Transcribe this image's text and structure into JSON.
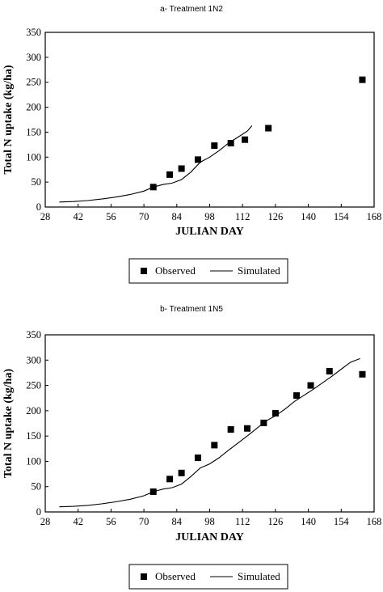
{
  "chart_data": [
    {
      "type": "scatter",
      "title": "a- Treatment 1N2",
      "xlabel": "JULIAN DAY",
      "ylabel": "Total N uptake (kg/ha)",
      "xlim": [
        28,
        168
      ],
      "ylim": [
        0,
        350
      ],
      "xticks": [
        28,
        42,
        56,
        70,
        84,
        98,
        112,
        126,
        140,
        154,
        168
      ],
      "yticks": [
        0,
        50,
        100,
        150,
        200,
        250,
        300,
        350
      ],
      "legend": {
        "position": "bottom",
        "entries": [
          "Observed",
          "Simulated"
        ]
      },
      "series": [
        {
          "name": "Observed",
          "kind": "points",
          "x": [
            74,
            81,
            86,
            93,
            100,
            107,
            113,
            123,
            163
          ],
          "y": [
            40,
            65,
            77,
            95,
            123,
            128,
            135,
            158,
            255
          ]
        },
        {
          "name": "Simulated",
          "kind": "line",
          "x": [
            34,
            40,
            46,
            52,
            58,
            64,
            70,
            74,
            78,
            82,
            86,
            90,
            94,
            98,
            102,
            106,
            110,
            114,
            116
          ],
          "y": [
            10,
            11,
            13,
            16,
            20,
            25,
            32,
            40,
            45,
            48,
            55,
            70,
            90,
            100,
            113,
            128,
            140,
            152,
            163
          ]
        }
      ]
    },
    {
      "type": "scatter",
      "title": "b- Treatment 1N5",
      "xlabel": "JULIAN DAY",
      "ylabel": "Total N uptake (kg/ha)",
      "xlim": [
        28,
        168
      ],
      "ylim": [
        0,
        350
      ],
      "xticks": [
        28,
        42,
        56,
        70,
        84,
        98,
        112,
        126,
        140,
        154,
        168
      ],
      "yticks": [
        0,
        50,
        100,
        150,
        200,
        250,
        300,
        350
      ],
      "legend": {
        "position": "bottom",
        "entries": [
          "Observed",
          "Simulated"
        ]
      },
      "series": [
        {
          "name": "Observed",
          "kind": "points",
          "x": [
            74,
            81,
            86,
            93,
            100,
            107,
            114,
            121,
            126,
            135,
            141,
            149,
            163
          ],
          "y": [
            40,
            65,
            77,
            107,
            132,
            163,
            165,
            176,
            195,
            230,
            250,
            278,
            272
          ]
        },
        {
          "name": "Simulated",
          "kind": "line",
          "x": [
            34,
            40,
            46,
            52,
            58,
            64,
            70,
            74,
            78,
            82,
            86,
            90,
            94,
            98,
            102,
            106,
            110,
            114,
            118,
            122,
            126,
            130,
            134,
            138,
            142,
            146,
            150,
            154,
            158,
            162
          ],
          "y": [
            10,
            11,
            13,
            16,
            20,
            25,
            32,
            40,
            45,
            48,
            55,
            70,
            87,
            95,
            107,
            122,
            136,
            150,
            165,
            180,
            190,
            203,
            218,
            230,
            242,
            255,
            268,
            282,
            296,
            303
          ]
        }
      ]
    }
  ]
}
